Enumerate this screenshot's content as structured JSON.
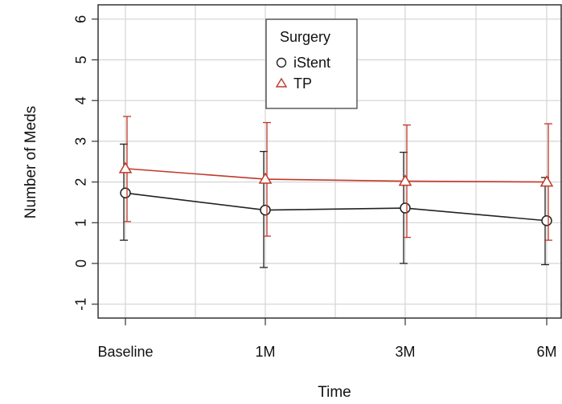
{
  "chart_data": {
    "type": "line",
    "title": "",
    "xlabel": "Time",
    "ylabel": "Number of Meds",
    "categories": [
      "Baseline",
      "1M",
      "3M",
      "6M"
    ],
    "ylim": [
      -1.5,
      6.4
    ],
    "yticks": [
      -1,
      0,
      1,
      2,
      3,
      4,
      5,
      6
    ],
    "grid": true,
    "legend": {
      "title": "Surgery",
      "placement": "top-center"
    },
    "series": [
      {
        "name": "iStent",
        "marker": "circle",
        "color": "#222222",
        "values": [
          1.73,
          1.31,
          1.36,
          1.05
        ],
        "error_low": [
          0.57,
          -0.1,
          0.0,
          -0.03
        ],
        "error_high": [
          2.93,
          2.75,
          2.73,
          2.11
        ]
      },
      {
        "name": "TP",
        "marker": "triangle",
        "color": "#c0392b",
        "values": [
          2.33,
          2.07,
          2.02,
          2.0
        ],
        "error_low": [
          1.03,
          0.67,
          0.64,
          0.57
        ],
        "error_high": [
          3.61,
          3.46,
          3.4,
          3.43
        ]
      }
    ]
  }
}
